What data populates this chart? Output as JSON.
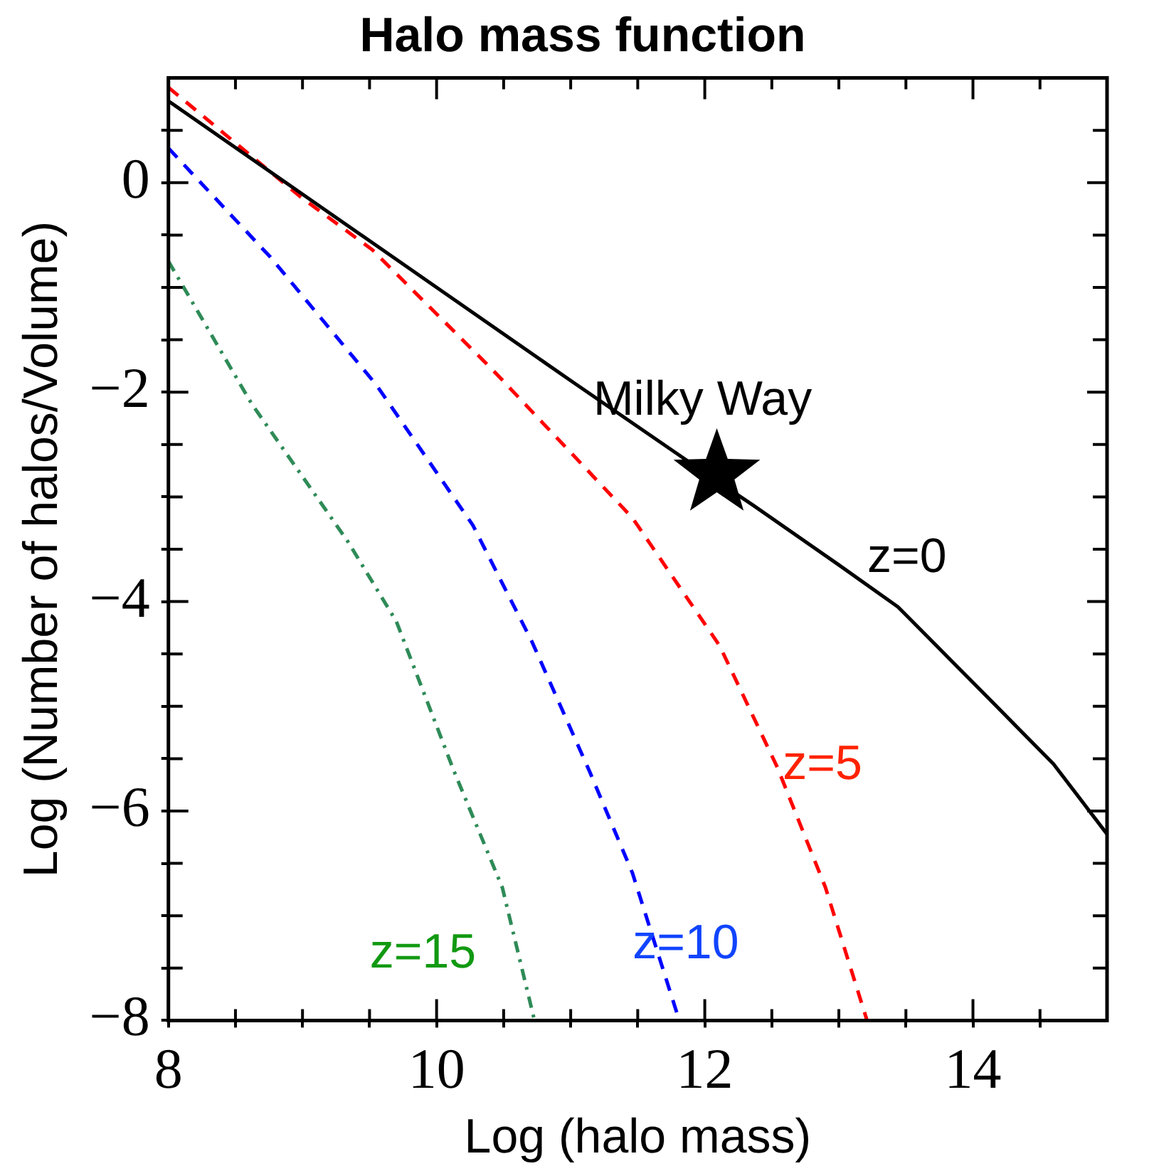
{
  "chart_data": {
    "type": "line",
    "title": "Halo mass function",
    "xlabel": "Log (halo mass)",
    "ylabel": "Log (Number of halos/Volume)",
    "xlim": [
      8,
      15
    ],
    "ylim": [
      -8,
      1
    ],
    "xticks": [
      8,
      {
        "value": 8.5,
        "label": null
      },
      {
        "value": 9,
        "label": null
      },
      {
        "value": 9.5,
        "label": null
      },
      10,
      {
        "value": 10.5,
        "label": null
      },
      {
        "value": 11,
        "label": null
      },
      {
        "value": 11.5,
        "label": null
      },
      12,
      {
        "value": 12.5,
        "label": null
      },
      {
        "value": 13,
        "label": null
      },
      {
        "value": 13.5,
        "label": null
      },
      14,
      {
        "value": 14.5,
        "label": null
      }
    ],
    "yticks": [
      {
        "value": -8,
        "label": "−8"
      },
      {
        "value": -7.5,
        "label": null
      },
      {
        "value": -7,
        "label": null
      },
      {
        "value": -6.5,
        "label": null
      },
      {
        "value": -6,
        "label": "−6"
      },
      {
        "value": -5.5,
        "label": null
      },
      {
        "value": -5,
        "label": null
      },
      {
        "value": -4.5,
        "label": null
      },
      {
        "value": -4,
        "label": "−4"
      },
      {
        "value": -3.5,
        "label": null
      },
      {
        "value": -3,
        "label": null
      },
      {
        "value": -2.5,
        "label": null
      },
      {
        "value": -2,
        "label": "−2"
      },
      {
        "value": -1.5,
        "label": null
      },
      {
        "value": -1,
        "label": null
      },
      {
        "value": -0.5,
        "label": null
      },
      0,
      {
        "value": 0.5,
        "label": null
      }
    ],
    "grid": false,
    "legend": false,
    "marker": "none",
    "series": [
      {
        "name": "z=0",
        "color": "#000000",
        "line_style": "solid",
        "x": [
          8,
          9,
          10,
          11,
          12,
          12.36,
          13,
          13.44,
          14.16,
          14.6,
          15
        ],
        "values": [
          0.78,
          -0.11,
          -1.0,
          -1.89,
          -2.77,
          -3.08,
          -3.65,
          -4.05,
          -4.98,
          -5.55,
          -6.22
        ]
      },
      {
        "name": "z=5",
        "color": "#ff0000",
        "line_style": "dashed",
        "x": [
          8,
          8.98,
          9.52,
          10.42,
          11.46,
          12.11,
          12.54,
          12.9,
          13.21
        ],
        "values": [
          0.91,
          -0.13,
          -0.64,
          -1.79,
          -3.2,
          -4.42,
          -5.58,
          -6.73,
          -8
        ]
      },
      {
        "name": "z=10",
        "color": "#0000ff",
        "line_style": "dashed",
        "x": [
          8,
          8.76,
          9.55,
          10.27,
          10.71,
          11.14,
          11.46,
          11.81
        ],
        "values": [
          0.33,
          -0.71,
          -1.93,
          -3.27,
          -4.38,
          -5.62,
          -6.59,
          -8
        ]
      },
      {
        "name": "z=15",
        "color": "#2e8b57",
        "line_style": "dashdot",
        "x": [
          8,
          8.62,
          9.34,
          9.7,
          10.13,
          10.49,
          10.73
        ],
        "values": [
          -0.75,
          -2.11,
          -3.43,
          -4.19,
          -5.62,
          -6.73,
          -8
        ]
      },
      {
        "name": "Milky Way",
        "type": "scatter",
        "marker": "star",
        "color": "#000000",
        "x": [
          12.09
        ],
        "values": [
          -2.78
        ]
      }
    ]
  }
}
